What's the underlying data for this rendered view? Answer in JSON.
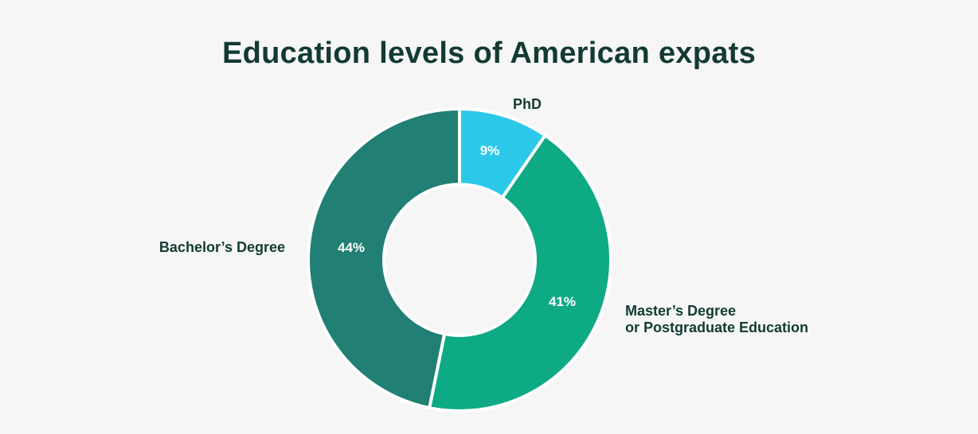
{
  "chart_data": {
    "type": "pie",
    "variant": "donut",
    "title": "Education levels of American expats",
    "slices": [
      {
        "label": "PhD",
        "value": 9,
        "value_label": "9%",
        "color": "#2bc8ea"
      },
      {
        "label_lines": [
          "Master’s Degree",
          "or Postgraduate Education"
        ],
        "value": 41,
        "value_label": "41%",
        "color": "#0eaa86"
      },
      {
        "label": "Bachelor’s Degree",
        "value": 44,
        "value_label": "44%",
        "color": "#217f74"
      }
    ]
  },
  "colors": {
    "background": "#f6f6f6",
    "title_text": "#123a33",
    "separator": "#ffffff"
  }
}
